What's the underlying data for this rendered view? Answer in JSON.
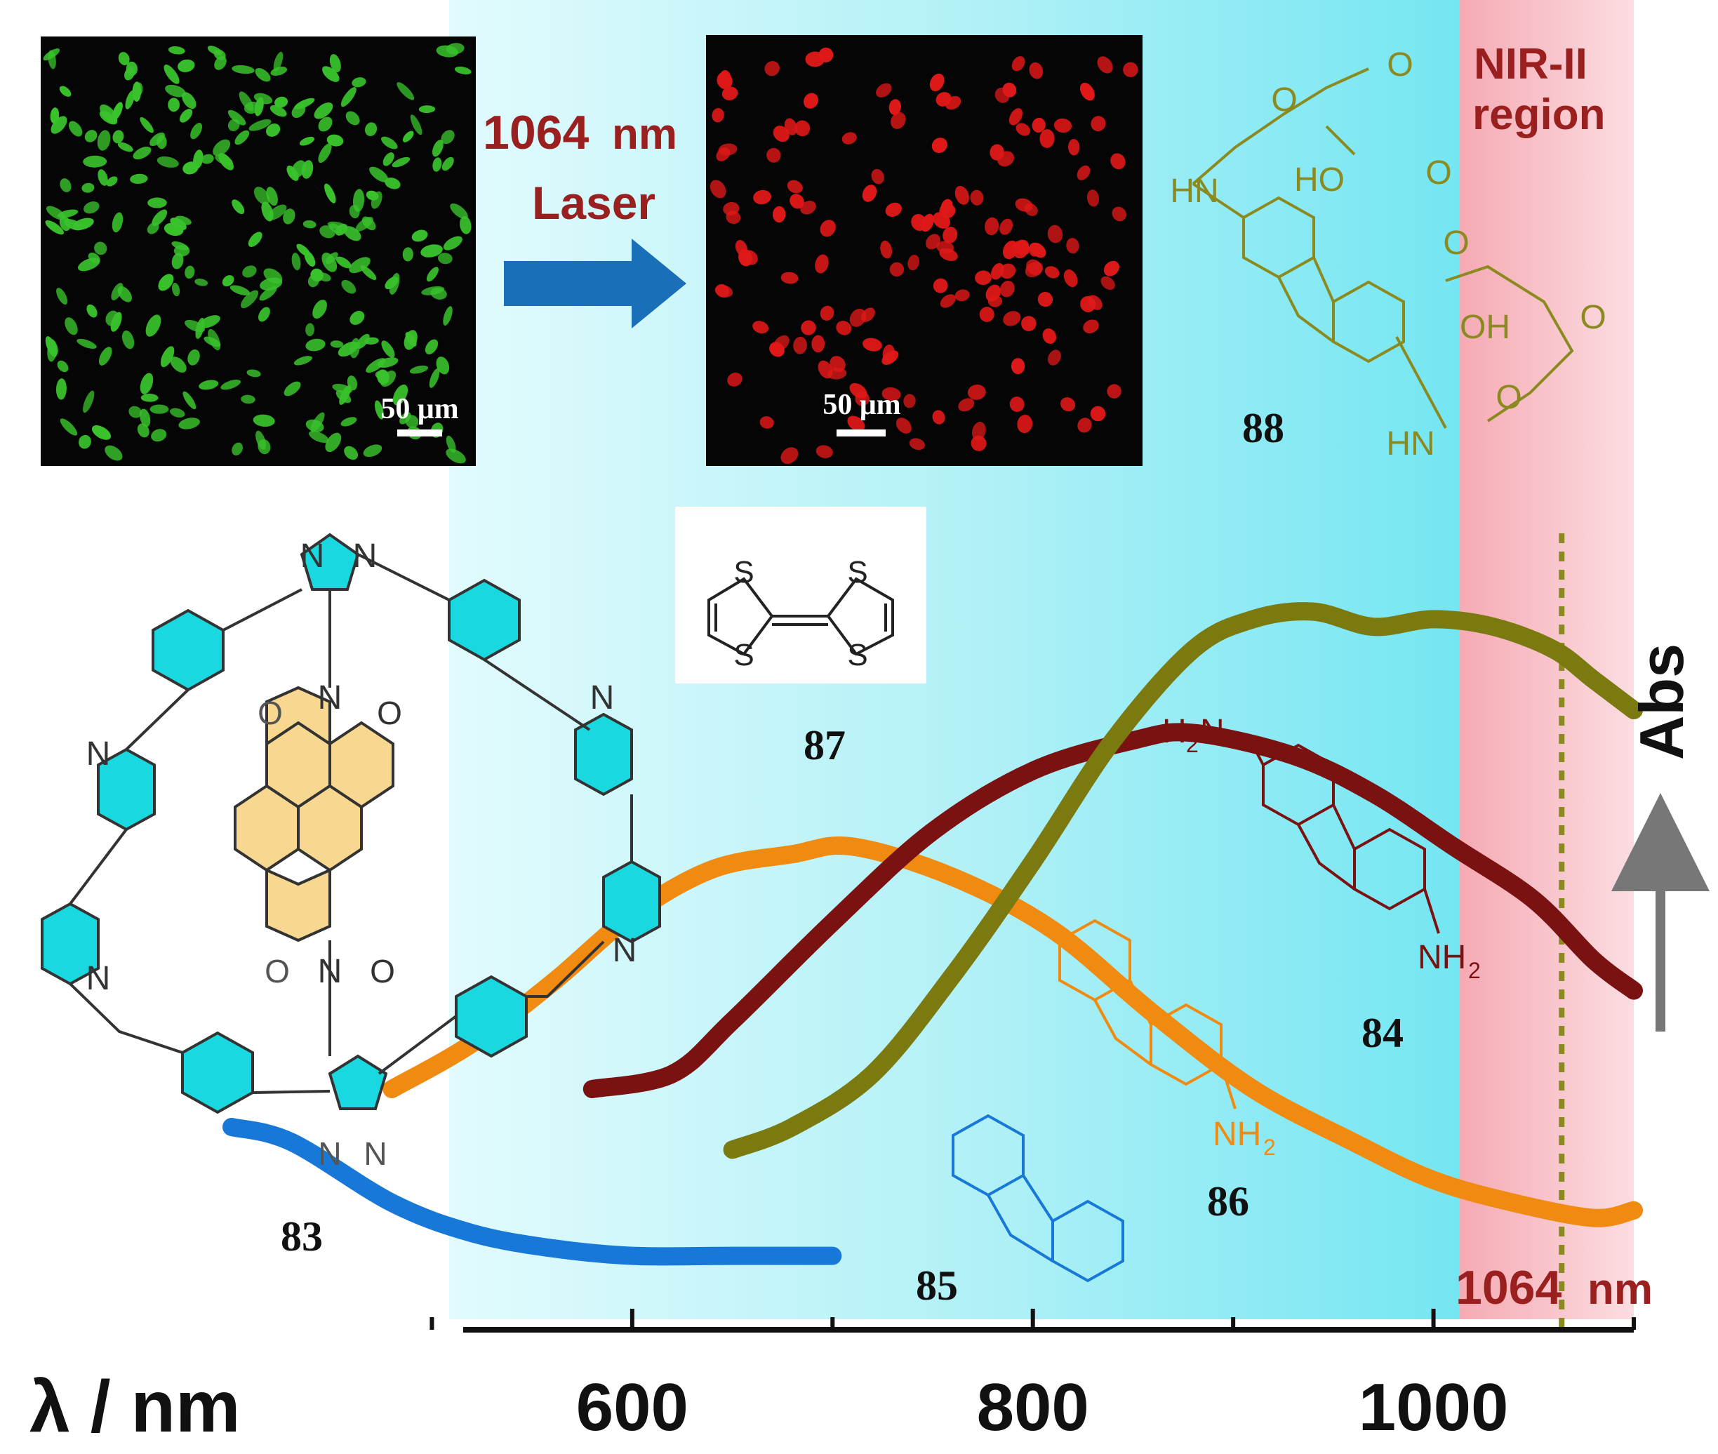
{
  "micrographs": {
    "before": {
      "scale_bar": "50 μm"
    },
    "after": {
      "scale_bar": "50 μm"
    }
  },
  "laser": {
    "line1": "1064",
    "line1_unit": "nm",
    "line2": "Laser"
  },
  "region_label": {
    "line1": "NIR-II",
    "line2": "region"
  },
  "marker": {
    "value": "1064",
    "unit": "nm"
  },
  "compounds": {
    "c83": "83",
    "c84": "84",
    "c85": "85",
    "c86": "86",
    "c87": "87",
    "c88": "88"
  },
  "atoms": {
    "N": "N",
    "O": "O",
    "S": "S",
    "HN": "HN",
    "HO": "HO",
    "OH": "OH",
    "H2N_H": "H",
    "H2N_2": "2",
    "H2N_N": "N",
    "NH2_NH": "NH",
    "NH2_2": "2"
  },
  "colors": {
    "c83": "#00c8d8",
    "c84": "#7a1212",
    "c85": "#1878d8",
    "c86": "#f08a10",
    "c87": "#222222",
    "c88": "#7a7a10",
    "nir_band": "#f8b8c0",
    "accent_text": "#9a2020",
    "arrow": "#1a70b8",
    "nucleus_green": "#39c22c",
    "nucleus_red": "#e01818"
  },
  "chart_data": {
    "type": "line",
    "xlabel": "λ / nm",
    "ylabel": "Abs",
    "xlim": [
      400,
      1100
    ],
    "x_ticks": [
      600,
      800,
      1000
    ],
    "shaded_regions": [
      {
        "label": "NIR-II region",
        "range": [
          1000,
          1100
        ]
      }
    ],
    "vertical_markers": [
      {
        "x": 1064,
        "label": "1064nm",
        "style": "dotted"
      }
    ],
    "series": [
      {
        "name": "85",
        "points": [
          [
            400,
            0.05
          ],
          [
            430,
            0.03
          ],
          [
            480,
            -0.05
          ],
          [
            520,
            -0.09
          ],
          [
            560,
            -0.11
          ],
          [
            600,
            -0.12
          ],
          [
            650,
            -0.12
          ],
          [
            700,
            -0.12
          ]
        ]
      },
      {
        "name": "86",
        "points": [
          [
            480,
            0.1
          ],
          [
            520,
            0.16
          ],
          [
            560,
            0.24
          ],
          [
            600,
            0.33
          ],
          [
            640,
            0.39
          ],
          [
            680,
            0.41
          ],
          [
            710,
            0.42
          ],
          [
            760,
            0.38
          ],
          [
            810,
            0.31
          ],
          [
            860,
            0.2
          ],
          [
            910,
            0.1
          ],
          [
            960,
            0.03
          ],
          [
            1000,
            -0.02
          ],
          [
            1040,
            -0.05
          ],
          [
            1080,
            -0.07
          ],
          [
            1100,
            -0.06
          ]
        ]
      },
      {
        "name": "84",
        "points": [
          [
            580,
            0.1
          ],
          [
            620,
            0.12
          ],
          [
            650,
            0.19
          ],
          [
            700,
            0.32
          ],
          [
            750,
            0.44
          ],
          [
            800,
            0.52
          ],
          [
            850,
            0.56
          ],
          [
            880,
            0.57
          ],
          [
            930,
            0.54
          ],
          [
            970,
            0.49
          ],
          [
            1010,
            0.42
          ],
          [
            1050,
            0.35
          ],
          [
            1080,
            0.27
          ],
          [
            1100,
            0.23
          ]
        ]
      },
      {
        "name": "88",
        "points": [
          [
            650,
            0.02
          ],
          [
            680,
            0.05
          ],
          [
            720,
            0.12
          ],
          [
            760,
            0.25
          ],
          [
            800,
            0.4
          ],
          [
            840,
            0.56
          ],
          [
            880,
            0.68
          ],
          [
            910,
            0.72
          ],
          [
            940,
            0.73
          ],
          [
            970,
            0.71
          ],
          [
            1000,
            0.72
          ],
          [
            1030,
            0.71
          ],
          [
            1060,
            0.68
          ],
          [
            1080,
            0.64
          ],
          [
            1100,
            0.6
          ]
        ]
      }
    ]
  }
}
